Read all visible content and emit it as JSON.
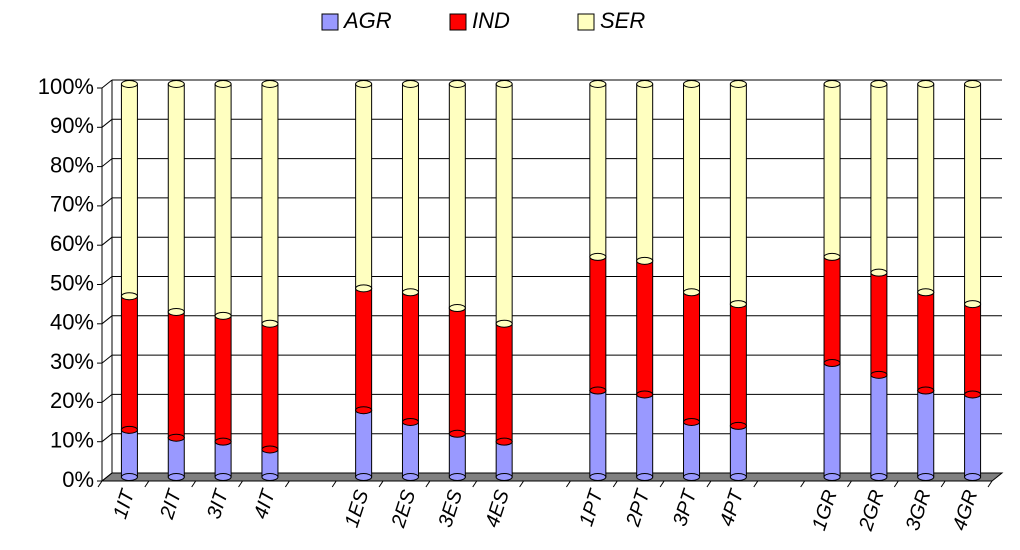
{
  "chart_data": {
    "type": "stacked_bar_3d",
    "categories": [
      "1IT",
      "2IT",
      "3IT",
      "4IT",
      null,
      "1ES",
      "2ES",
      "3ES",
      "4ES",
      null,
      "1PT",
      "2PT",
      "3PT",
      "4PT",
      null,
      "1GR",
      "2GR",
      "3GR",
      "4GR"
    ],
    "series": [
      {
        "name": "AGR",
        "color": "#9999ff",
        "values": [
          12,
          10,
          9,
          7,
          null,
          17,
          14,
          11,
          9,
          null,
          22,
          21,
          14,
          13,
          null,
          29,
          26,
          22,
          21
        ]
      },
      {
        "name": "IND",
        "color": "#ff0000",
        "values": [
          34,
          32,
          32,
          32,
          null,
          31,
          33,
          32,
          30,
          null,
          34,
          34,
          33,
          31,
          null,
          27,
          26,
          25,
          23
        ]
      },
      {
        "name": "SER",
        "color": "#ffffc0",
        "values": [
          54,
          58,
          59,
          61,
          null,
          52,
          53,
          57,
          61,
          null,
          44,
          45,
          53,
          56,
          null,
          44,
          48,
          53,
          56
        ]
      }
    ],
    "ylim": [
      0,
      100
    ],
    "yticks": [
      {
        "value": 0,
        "label": "0%"
      },
      {
        "value": 10,
        "label": "10%"
      },
      {
        "value": 20,
        "label": "20%"
      },
      {
        "value": 30,
        "label": "30%"
      },
      {
        "value": 40,
        "label": "40%"
      },
      {
        "value": 50,
        "label": "50%"
      },
      {
        "value": 60,
        "label": "60%"
      },
      {
        "value": 70,
        "label": "70%"
      },
      {
        "value": 80,
        "label": "80%"
      },
      {
        "value": 90,
        "label": "90%"
      },
      {
        "value": 100,
        "label": "100%"
      }
    ],
    "grid": true,
    "legend": "top"
  }
}
